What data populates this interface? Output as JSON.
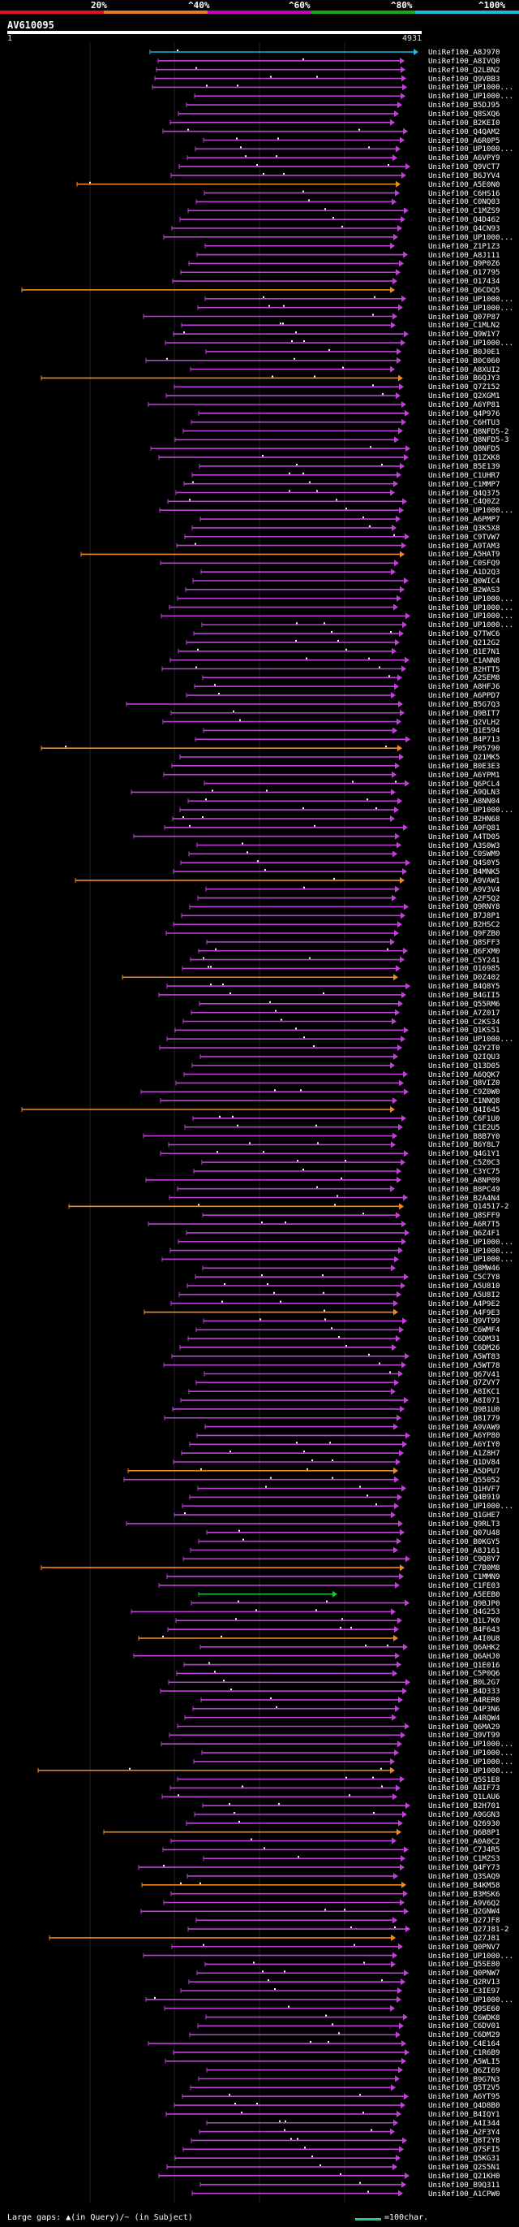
{
  "legend": {
    "labels": [
      "20%",
      "^40%",
      "^60%",
      "^80%",
      "^100%"
    ],
    "colors": [
      "#e0141e",
      "#f07818",
      "#c000c8",
      "#10b010",
      "#20b8e0"
    ]
  },
  "query": {
    "name": "AV610095",
    "start": "1",
    "end": "4931"
  },
  "footer": {
    "left_text": "Large gaps: ▲(in Query)/~ (in Subject)",
    "scale_text": "=100char.",
    "scale_color": "#20c8a0"
  },
  "hits": [
    "UniRef100_A8J970",
    "UniRef100_A8IVQ0",
    "UniRef100_Q2LBN2",
    "UniRef100_Q9VBB3",
    "UniRef100_UP1000...",
    "UniRef100_UP1000...",
    "UniRef100_B5DJ95",
    "UniRef100_Q8SXQ6",
    "UniRef100_B2KEI0",
    "UniRef100_Q4QAM2",
    "UniRef100_A6R0P5",
    "UniRef100_UP1000...",
    "UniRef100_A6VPY9",
    "UniRef100_Q9VCT7",
    "UniRef100_B6JYV4",
    "UniRef100_A5E0N0",
    "UniRef100_C6HS16",
    "UniRef100_C0NQ03",
    "UniRef100_C1MZS9",
    "UniRef100_Q4D462",
    "UniRef100_Q4CN93",
    "UniRef100_UP1000...",
    "UniRef100_Z1P1Z3",
    "UniRef100_A8J111",
    "UniRef100_Q9P0Z6",
    "UniRef100_O17795",
    "UniRef100_O17434",
    "UniRef100_Q6CDQ5",
    "UniRef100_UP1000...",
    "UniRef100_UP1000...",
    "UniRef100_Q07P87",
    "UniRef100_C1MLN2",
    "UniRef100_Q9W1Y7",
    "UniRef100_UP1000...",
    "UniRef100_B0J0E1",
    "UniRef100_B0C060",
    "UniRef100_A8XUI2",
    "UniRef100_B6QJY3",
    "UniRef100_Q7Z152",
    "UniRef100_Q2XGM1",
    "UniRef100_A6YP81",
    "UniRef100_Q4P976",
    "UniRef100_C6HTU3",
    "UniRef100_Q8NFD5-2",
    "UniRef100_Q8NFD5-3",
    "UniRef100_Q8NFD5",
    "UniRef100_Q1ZXK8",
    "UniRef100_B5E139",
    "UniRef100_C1UHR7",
    "UniRef100_C1MMP7",
    "UniRef100_Q4Q375",
    "UniRef100_C4Q0Z2",
    "UniRef100_UP1000...",
    "UniRef100_A6PMP7",
    "UniRef100_Q3K5X8",
    "UniRef100_C9TVW7",
    "UniRef100_A9TAM3",
    "UniRef100_A5HAT9",
    "UniRef100_C0SFQ9",
    "UniRef100_A1D2Q3",
    "UniRef100_Q0WIC4",
    "UniRef100_B2WAS3",
    "UniRef100_UP1000...",
    "UniRef100_UP1000...",
    "UniRef100_UP1000...",
    "UniRef100_UP1000...",
    "UniRef100_Q7TWC6",
    "UniRef100_Q212G2",
    "UniRef100_Q1E7N1",
    "UniRef100_C1ANN8",
    "UniRef100_B2HTT5",
    "UniRef100_A2SEM8",
    "UniRef100_A8HFJ6",
    "UniRef100_A6PPD7",
    "UniRef100_B5G7Q3",
    "UniRef100_Q9BIT7",
    "UniRef100_Q2VLH2",
    "UniRef100_Q1E594",
    "UniRef100_B4P713",
    "UniRef100_P05790",
    "UniRef100_Q21MK5",
    "UniRef100_B0E3E3",
    "UniRef100_A6YPM1",
    "UniRef100_Q6PCL4",
    "UniRef100_A9QLN3",
    "UniRef100_A8NN04",
    "UniRef100_UP1000...",
    "UniRef100_B2HN68",
    "UniRef100_A9FQ81",
    "UniRef100_A4TD05",
    "UniRef100_A3S0W3",
    "UniRef100_C0SWM9",
    "UniRef100_Q4S0Y5",
    "UniRef100_B4MNK5",
    "UniRef100_A9VAW1",
    "UniRef100_A9V3V4",
    "UniRef100_A2F5Q2",
    "UniRef100_Q9RNY8",
    "UniRef100_B7J8P1",
    "UniRef100_B2HSC2",
    "UniRef100_Q9FZB0",
    "UniRef100_Q8SFF3",
    "UniRef100_Q6FXM0",
    "UniRef100_C5Y241",
    "UniRef100_O16985",
    "UniRef100_D0Z402",
    "UniRef100_B4Q8Y5",
    "UniRef100_B4GII5",
    "UniRef100_Q55RM6",
    "UniRef100_A7Z017",
    "UniRef100_C2KS34",
    "UniRef100_Q1KS51",
    "UniRef100_UP1000...",
    "UniRef100_Q2Y2T0",
    "UniRef100_Q2IQU3",
    "UniRef100_Q13D05",
    "UniRef100_A6QQK7",
    "UniRef100_Q8VIZ0",
    "UniRef100_C9Z0W0",
    "UniRef100_C1NNQ8",
    "UniRef100_Q4I645",
    "UniRef100_C6F1U0",
    "UniRef100_C1E2U5",
    "UniRef100_B8B7Y0",
    "UniRef100_B6Y8L7",
    "UniRef100_Q4G1Y1",
    "UniRef100_C5Z0C3",
    "UniRef100_C3YC75",
    "UniRef100_A8NP09",
    "UniRef100_B8PC49",
    "UniRef100_B2A4N4",
    "UniRef100_Q14517-2",
    "UniRef100_Q8SFF9",
    "UniRef100_A6R7T5",
    "UniRef100_Q6Z4F1",
    "UniRef100_UP1000...",
    "UniRef100_UP1000...",
    "UniRef100_UP1000...",
    "UniRef100_Q8MW46",
    "UniRef100_C5C7Y8",
    "UniRef100_A5U810",
    "UniRef100_A5U8I2",
    "UniRef100_A4P9E2",
    "UniRef100_A4F9E3",
    "UniRef100_Q9VT99",
    "UniRef100_C6WMF4",
    "UniRef100_C6DM31",
    "UniRef100_C6DM26",
    "UniRef100_A5WT83",
    "UniRef100_A5WT78",
    "UniRef100_Q67V41",
    "UniRef100_Q7ZVY7",
    "UniRef100_A8IKC1",
    "UniRef100_A8I071",
    "UniRef100_Q9B1U0",
    "UniRef100_O81779",
    "UniRef100_A9VAW9",
    "UniRef100_A6YP80",
    "UniRef100_A6YIY0",
    "UniRef100_A1Z8H7",
    "UniRef100_Q1DV84",
    "UniRef100_A5DPU7",
    "UniRef100_Q55052",
    "UniRef100_Q1HVF7",
    "UniRef100_Q4B919",
    "UniRef100_UP1000...",
    "UniRef100_Q1GHE7",
    "UniRef100_Q9RLT3",
    "UniRef100_Q07U48",
    "UniRef100_B0KGY5",
    "UniRef100_A8J161",
    "UniRef100_C9Q8Y7",
    "UniRef100_C7B0M8",
    "UniRef100_C1MMN9",
    "UniRef100_C1FE03",
    "UniRef100_A5EEB0",
    "UniRef100_Q9BJP0",
    "UniRef100_Q4G253",
    "UniRef100_Q1L7K0",
    "UniRef100_B4F643",
    "UniRef100_A4I0U8",
    "UniRef100_Q6AHK2",
    "UniRef100_Q6AHJ0",
    "UniRef100_Q1E016",
    "UniRef100_C5P0Q6",
    "UniRef100_B0L2G7",
    "UniRef100_B4D333",
    "UniRef100_A4RER0",
    "UniRef100_Q4P3N6",
    "UniRef100_A4RQW4",
    "UniRef100_Q6MA29",
    "UniRef100_Q9VT99",
    "UniRef100_UP1000...",
    "UniRef100_UP1000...",
    "UniRef100_UP1000...",
    "UniRef100_UP1000...",
    "UniRef100_Q5S1E8",
    "UniRef100_A8IF73",
    "UniRef100_Q1LAU6",
    "UniRef100_B2H701",
    "UniRef100_A9GGN3",
    "UniRef100_Q26930",
    "UniRef100_Q6B8P1",
    "UniRef100_A0A0C2",
    "UniRef100_C7J4R5",
    "UniRef100_C1MZS3",
    "UniRef100_Q4FY73",
    "UniRef100_Q3SAQ9",
    "UniRef100_B4KM58",
    "UniRef100_B3MSK6",
    "UniRef100_A9V6Q2",
    "UniRef100_Q2GNW4",
    "UniRef100_Q27JF8",
    "UniRef100_Q27J81-2",
    "UniRef100_Q27J81",
    "UniRef100_Q0PNV7",
    "UniRef100_UP1000...",
    "UniRef100_Q5SE80",
    "UniRef100_Q0PNW7",
    "UniRef100_Q2RV13",
    "UniRef100_C3IE97",
    "UniRef100_UP1000...",
    "UniRef100_Q9SE60",
    "UniRef100_C6WDK8",
    "UniRef100_C6DV01",
    "UniRef100_C6DM29",
    "UniRef100_C4E164",
    "UniRef100_C1R6B9",
    "UniRef100_A5WLI5",
    "UniRef100_Q6ZI69",
    "UniRef100_B9G7N3",
    "UniRef100_Q5T2V5",
    "UniRef100_A6YT95",
    "UniRef100_Q4D8B0",
    "UniRef100_B4IQY1",
    "UniRef100_A4I344",
    "UniRef100_A2F3Y4",
    "UniRef100_Q8T2Y8",
    "UniRef100_Q7SFI5",
    "UniRef100_Q5KG31",
    "UniRef100_Q2S5N1",
    "UniRef100_Q21KH0",
    "UniRef100_B9Q311",
    "UniRef100_A1CPW0"
  ]
}
